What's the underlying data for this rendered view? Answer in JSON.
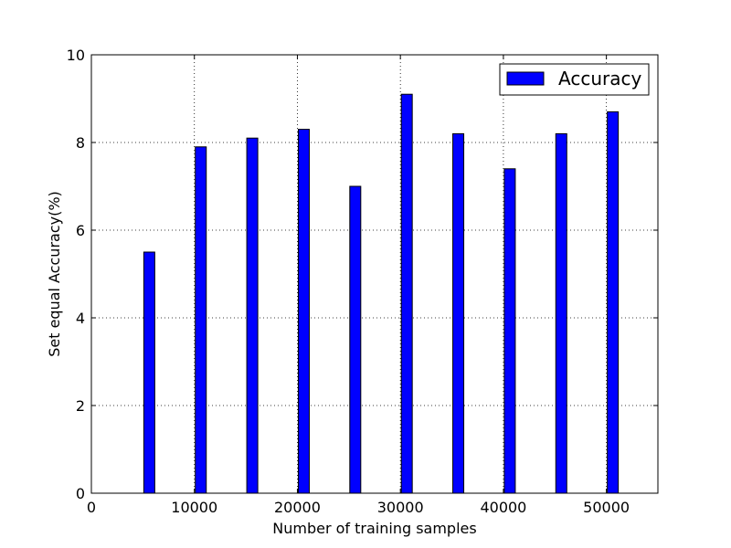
{
  "chart_data": {
    "type": "bar",
    "title": "",
    "xlabel": "Number of training samples",
    "ylabel": "Set equal Accuracy(%)",
    "xlim": [
      0,
      55000
    ],
    "ylim": [
      0,
      10
    ],
    "xticks": [
      "0",
      "10000",
      "20000",
      "30000",
      "40000",
      "50000"
    ],
    "yticks": [
      "0",
      "2",
      "4",
      "6",
      "8",
      "10"
    ],
    "grid": true,
    "legend_position": "top-right",
    "series": [
      {
        "name": "Accuracy",
        "color": "#0000ff",
        "x": [
          5000,
          10000,
          15000,
          20000,
          25000,
          30000,
          35000,
          40000,
          45000,
          50000
        ],
        "values": [
          5.5,
          7.9,
          8.1,
          8.3,
          7.0,
          9.1,
          8.2,
          7.4,
          8.2,
          8.7
        ]
      }
    ]
  }
}
